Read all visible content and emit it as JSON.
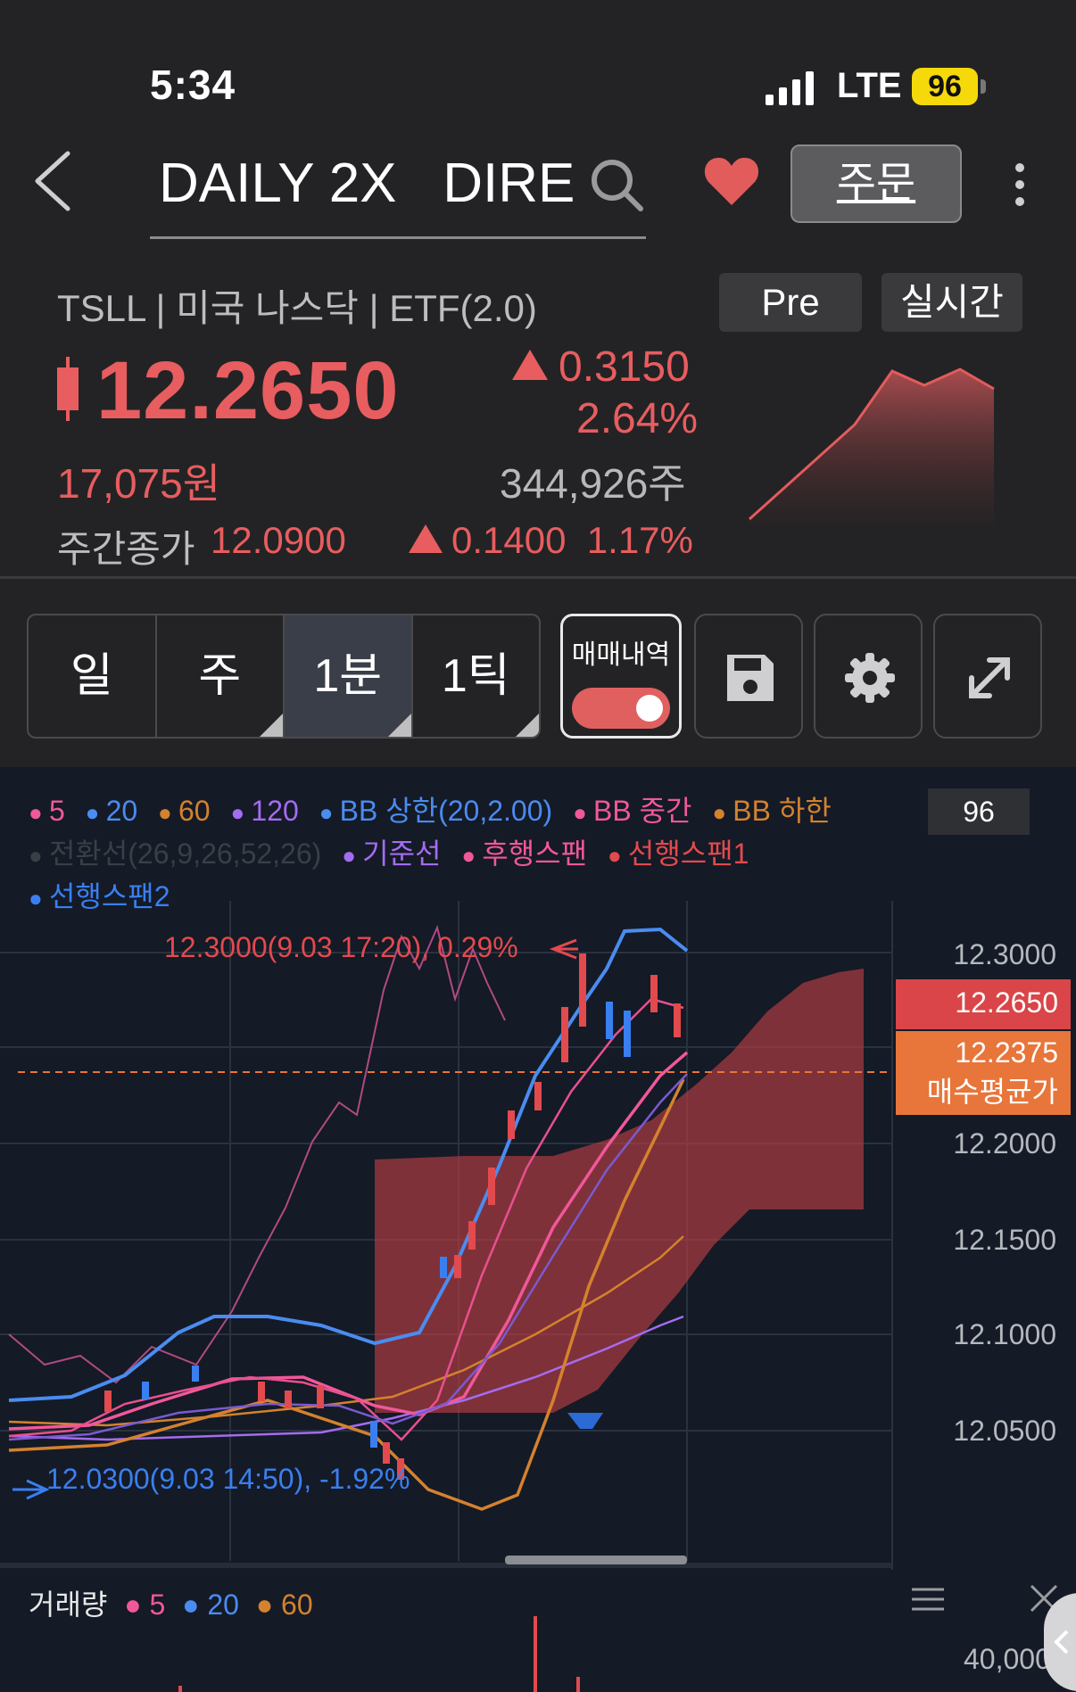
{
  "status_bar": {
    "time": "5:34",
    "network": "LTE",
    "battery": "96"
  },
  "header": {
    "title": "DAILY 2X   DIRE",
    "order_label": "주문",
    "back_icon": "chevron-left-icon",
    "search_icon": "search-icon",
    "favorite_icon": "heart-icon",
    "more_icon": "kebab-icon"
  },
  "quote": {
    "meta": "TSLL | 미국 나스닥 | ETF(2.0)",
    "pre_label": "Pre",
    "realtime_label": "실시간",
    "price": "12.2650",
    "change": "0.3150",
    "change_pct": "2.64%",
    "krw": "17,075원",
    "volume": "344,926주",
    "weekly_label": "주간종가",
    "weekly_close": "12.0900",
    "weekly_change": "0.1400  1.17%",
    "up_color": "#e85d5f"
  },
  "toolbar": {
    "periods": [
      "일",
      "주",
      "1분",
      "1틱"
    ],
    "active_period": "1분",
    "trade_history_label": "매매내역",
    "trade_history_on": true,
    "icons": [
      "save-icon",
      "gear-icon",
      "expand-icon"
    ]
  },
  "legend": {
    "hit_count": "96",
    "items": [
      {
        "label": "5",
        "color": "#f0589a"
      },
      {
        "label": "20",
        "color": "#4a8cf0"
      },
      {
        "label": "60",
        "color": "#d4822e"
      },
      {
        "label": "120",
        "color": "#a46cf0"
      },
      {
        "label": "BB 상한(20,2.00)",
        "color": "#4a8cf0"
      },
      {
        "label": "BB 중간",
        "color": "#f0589a"
      },
      {
        "label": "BB 하한",
        "color": "#d4822e"
      },
      {
        "label": "전환선(26,9,26,52,26)",
        "color": "#3a3f46"
      },
      {
        "label": "기준선",
        "color": "#a46cf0"
      },
      {
        "label": "후행스팬",
        "color": "#f0589a"
      },
      {
        "label": "선행스팬1",
        "color": "#e24a4e"
      },
      {
        "label": "선행스팬2",
        "color": "#3a7ff0"
      }
    ]
  },
  "chart": {
    "y_axis": [
      "12.3000",
      "12.2000",
      "12.1500",
      "12.1000",
      "12.0500"
    ],
    "current_price_tag": "12.2650",
    "avg_price_tag": "12.2375",
    "avg_price_label": "매수평균가",
    "high_annotation": "12.3000(9.03 17:20), 0.29%",
    "low_annotation": "12.0300(9.03 14:50), -1.92%"
  },
  "volume_panel": {
    "label": "거래량",
    "items": [
      {
        "label": "5",
        "color": "#f0589a"
      },
      {
        "label": "20",
        "color": "#4a8cf0"
      },
      {
        "label": "60",
        "color": "#d4822e"
      }
    ],
    "y_axis": "40,000"
  }
}
